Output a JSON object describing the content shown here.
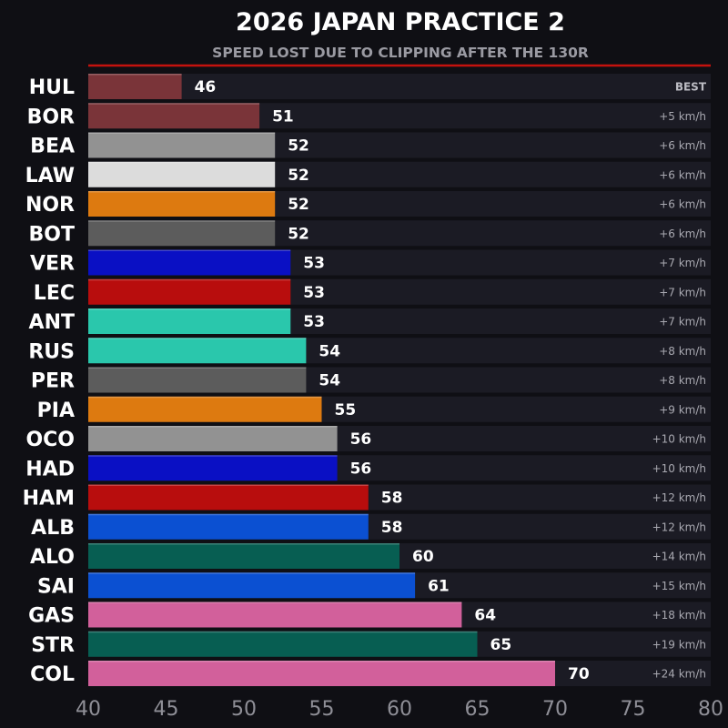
{
  "chart_data": {
    "type": "bar",
    "orientation": "horizontal",
    "title": "2026 JAPAN PRACTICE 2",
    "subtitle": "SPEED LOST DUE TO CLIPPING AFTER THE 130R",
    "xlim": [
      40,
      80
    ],
    "xticks": [
      40,
      45,
      50,
      55,
      60,
      65,
      70,
      75,
      80
    ],
    "grid": false,
    "categories": [
      "HUL",
      "BOR",
      "BEA",
      "LAW",
      "NOR",
      "BOT",
      "VER",
      "LEC",
      "ANT",
      "RUS",
      "PER",
      "PIA",
      "OCO",
      "HAD",
      "HAM",
      "ALB",
      "ALO",
      "SAI",
      "GAS",
      "STR",
      "COL"
    ],
    "values": [
      46,
      51,
      52,
      52,
      52,
      52,
      53,
      53,
      53,
      54,
      54,
      55,
      56,
      56,
      58,
      58,
      60,
      61,
      64,
      65,
      70
    ],
    "deltas": [
      "BEST",
      "+5 km/h",
      "+6 km/h",
      "+6 km/h",
      "+6 km/h",
      "+6 km/h",
      "+7 km/h",
      "+7 km/h",
      "+7 km/h",
      "+8 km/h",
      "+8 km/h",
      "+9 km/h",
      "+10 km/h",
      "+10 km/h",
      "+12 km/h",
      "+12 km/h",
      "+14 km/h",
      "+15 km/h",
      "+18 km/h",
      "+19 km/h",
      "+24 km/h"
    ],
    "colors": [
      "#7a3439",
      "#7a3439",
      "#929292",
      "#dcdcdc",
      "#dd7a10",
      "#5c5c5c",
      "#0a10c4",
      "#b80d0d",
      "#2ac7ac",
      "#2ac7ac",
      "#5c5c5c",
      "#dd7a10",
      "#929292",
      "#0a10c4",
      "#b80d0d",
      "#0b50d2",
      "#075e52",
      "#0b50d2",
      "#d2609b",
      "#075e52",
      "#d2609b"
    ],
    "accent_color": "#c4120e"
  }
}
